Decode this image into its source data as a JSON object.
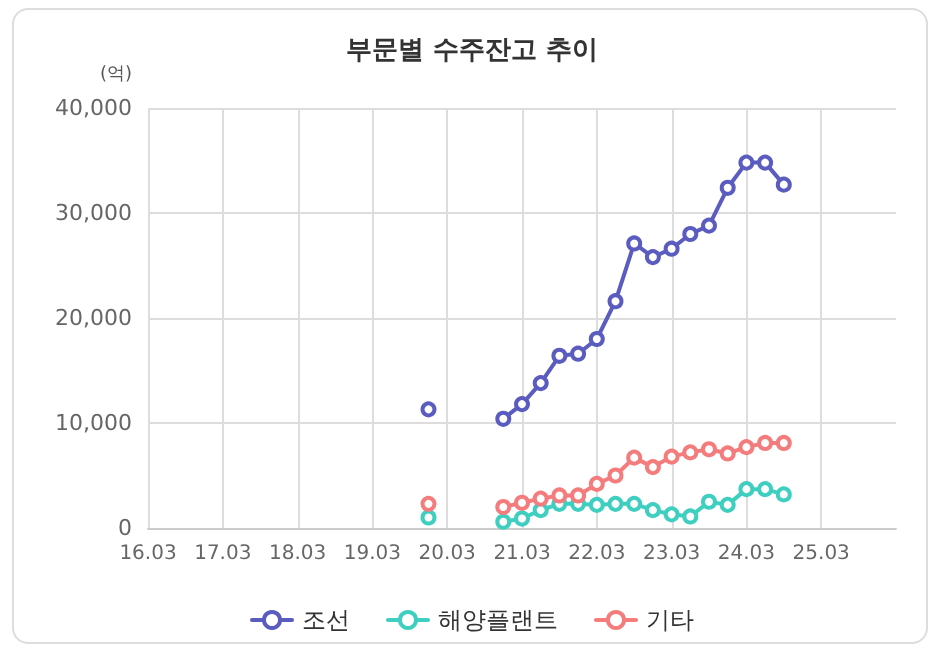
{
  "chart_data": {
    "type": "line",
    "title": "부문별 수주잔고 추이",
    "ylabel": "(억)",
    "categories": [
      "16.03",
      null,
      null,
      null,
      "17.03",
      null,
      null,
      null,
      "18.03",
      null,
      null,
      null,
      "19.03",
      null,
      null,
      null,
      "20.03",
      null,
      null,
      null,
      "21.03",
      null,
      null,
      null,
      "22.03",
      null,
      null,
      null,
      "23.03",
      null,
      null,
      null,
      "24.03",
      null,
      null,
      null,
      "25.03",
      null,
      null,
      null,
      null
    ],
    "series": [
      {
        "name": "조선",
        "color": "#5b5cbf",
        "values": [
          null,
          null,
          null,
          null,
          null,
          null,
          null,
          null,
          null,
          null,
          null,
          null,
          null,
          null,
          null,
          11300,
          null,
          null,
          null,
          10400,
          11800,
          13800,
          16400,
          16600,
          18000,
          21600,
          27100,
          25800,
          26600,
          28000,
          28800,
          32400,
          34800,
          34800,
          32700,
          null,
          null,
          null,
          null,
          null,
          null
        ]
      },
      {
        "name": "해양플랜트",
        "color": "#3fcfc0",
        "values": [
          null,
          null,
          null,
          null,
          null,
          null,
          null,
          null,
          null,
          null,
          null,
          null,
          null,
          null,
          null,
          1000,
          null,
          null,
          null,
          600,
          900,
          1700,
          2300,
          2300,
          2200,
          2300,
          2300,
          1700,
          1300,
          1100,
          2500,
          2200,
          3700,
          3700,
          3200,
          null,
          null,
          null,
          null,
          null,
          null
        ]
      },
      {
        "name": "기타",
        "color": "#f47c7c",
        "values": [
          null,
          null,
          null,
          null,
          null,
          null,
          null,
          null,
          null,
          null,
          null,
          null,
          null,
          null,
          null,
          2300,
          null,
          null,
          null,
          2000,
          2400,
          2800,
          3100,
          3100,
          4200,
          5000,
          6700,
          5800,
          6800,
          7200,
          7500,
          7100,
          7700,
          8100,
          8100,
          null,
          null,
          null,
          null,
          null,
          null
        ]
      }
    ],
    "ylim": [
      0,
      40000
    ],
    "yticks": [
      0,
      {
        "value": 10000,
        "label": "10,000"
      },
      {
        "value": 20000,
        "label": "20,000"
      },
      {
        "value": 30000,
        "label": "30,000"
      },
      {
        "value": 40000,
        "label": "40,000"
      }
    ],
    "grid": true,
    "legend": "bottom",
    "marker": "circle",
    "line_style": "solid"
  }
}
